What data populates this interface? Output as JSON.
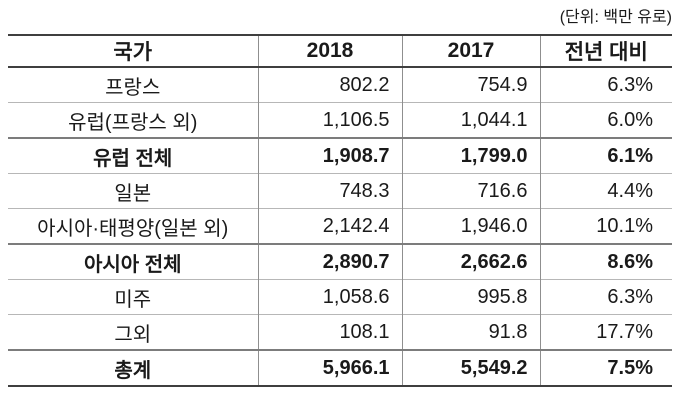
{
  "unit_note": "(단위: 백만 유로)",
  "table": {
    "columns": [
      {
        "label": "국가"
      },
      {
        "label": "2018"
      },
      {
        "label": "2017"
      },
      {
        "label": "전년 대비"
      }
    ],
    "rows": [
      {
        "country": "프랑스",
        "y2018": "802.2",
        "y2017": "754.9",
        "yoy": "6.3%",
        "bold": false
      },
      {
        "country": "유럽(프랑스 외)",
        "y2018": "1,106.5",
        "y2017": "1,044.1",
        "yoy": "6.0%",
        "bold": false
      },
      {
        "country": "유럽 전체",
        "y2018": "1,908.7",
        "y2017": "1,799.0",
        "yoy": "6.1%",
        "bold": true
      },
      {
        "country": "일본",
        "y2018": "748.3",
        "y2017": "716.6",
        "yoy": "4.4%",
        "bold": false
      },
      {
        "country": "아시아·태평양(일본 외)",
        "y2018": "2,142.4",
        "y2017": "1,946.0",
        "yoy": "10.1%",
        "bold": false
      },
      {
        "country": "아시아 전체",
        "y2018": "2,890.7",
        "y2017": "2,662.6",
        "yoy": "8.6%",
        "bold": true
      },
      {
        "country": "미주",
        "y2018": "1,058.6",
        "y2017": "995.8",
        "yoy": "6.3%",
        "bold": false
      },
      {
        "country": "그외",
        "y2018": "108.1",
        "y2017": "91.8",
        "yoy": "17.7%",
        "bold": false
      },
      {
        "country": "총계",
        "y2018": "5,966.1",
        "y2017": "5,549.2",
        "yoy": "7.5%",
        "bold": true
      }
    ]
  },
  "colors": {
    "text": "#1a1a1a",
    "border_strong": "#3f3f3f",
    "border_total_row": "#7c7c7c",
    "border_light": "#b7b7b7",
    "background": "#ffffff"
  }
}
